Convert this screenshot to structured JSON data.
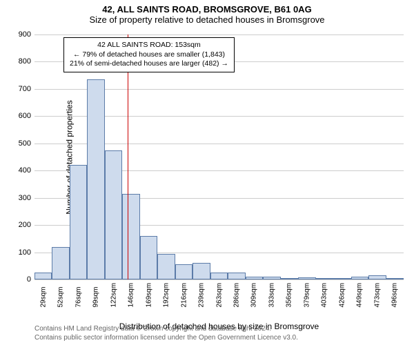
{
  "title": "42, ALL SAINTS ROAD, BROMSGROVE, B61 0AG",
  "subtitle": "Size of property relative to detached houses in Bromsgrove",
  "y_axis_title": "Number of detached properties",
  "x_axis_title": "Distribution of detached houses by size in Bromsgrove",
  "y_ticks": [
    0,
    100,
    200,
    300,
    400,
    500,
    600,
    700,
    800,
    900
  ],
  "y_max": 900,
  "x_categories": [
    "29sqm",
    "52sqm",
    "76sqm",
    "99sqm",
    "122sqm",
    "146sqm",
    "169sqm",
    "192sqm",
    "216sqm",
    "239sqm",
    "263sqm",
    "286sqm",
    "309sqm",
    "333sqm",
    "356sqm",
    "379sqm",
    "403sqm",
    "426sqm",
    "449sqm",
    "473sqm",
    "496sqm"
  ],
  "bar_values": [
    25,
    120,
    420,
    735,
    475,
    315,
    160,
    95,
    55,
    60,
    25,
    25,
    10,
    10,
    5,
    8,
    5,
    3,
    10,
    15,
    5
  ],
  "bar_fill_color": "#cedbed",
  "bar_border_color": "#5b7ba8",
  "marker_color": "#cc0000",
  "marker_index": 5.3,
  "annotation_line1": "42 ALL SAINTS ROAD: 153sqm",
  "annotation_line2": "← 79% of detached houses are smaller (1,843)",
  "annotation_line3": "21% of semi-detached houses are larger (482) →",
  "grid_color": "#cccccc",
  "background_color": "#ffffff",
  "footer_line1": "Contains HM Land Registry data © Crown copyright and database right 2024.",
  "footer_line2": "Contains public sector information licensed under the Open Government Licence v3.0."
}
